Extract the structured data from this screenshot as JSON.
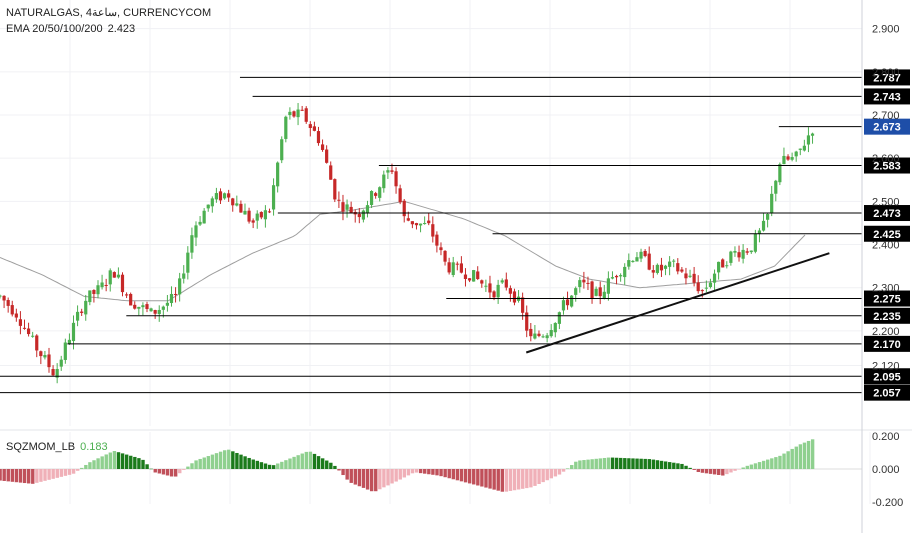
{
  "header": {
    "symbol": "NATURALGAS, 4ساعة, CURRENCYCOM",
    "ema_label": "EMA 20/50/100/200",
    "ema_value": "2.423"
  },
  "indicator": {
    "name": "SQZMOM_LB",
    "value": "0.183"
  },
  "colors": {
    "bull": "#4caf50",
    "bear": "#c62828",
    "ema": "#9e9e9e",
    "level_line": "#000000",
    "label_bg": "#000000",
    "label_text": "#ffffff",
    "current_label_bg": "#1e4ea8",
    "mom_up_strong": "#1b7a1b",
    "mom_up_weak": "#8fd08f",
    "mom_down_strong": "#c0505a",
    "mom_down_weak": "#f0b0b8"
  },
  "chart_data": [
    {
      "type": "candlestick",
      "title": "",
      "ylim": [
        2.04,
        2.92
      ],
      "price_ticks": [
        "2.900",
        "2.800",
        "2.700",
        "2.600",
        "2.500",
        "2.400",
        "2.300",
        "2.200",
        "2.120"
      ],
      "levels": [
        {
          "value": 2.787,
          "label": "2.787",
          "from": 0.285
        },
        {
          "value": 2.743,
          "label": "2.743",
          "from": 0.3
        },
        {
          "value": 2.673,
          "label": "2.673",
          "from": 0.925,
          "current": true
        },
        {
          "value": 2.583,
          "label": "2.583",
          "from": 0.45
        },
        {
          "value": 2.473,
          "label": "2.473",
          "from": 0.33
        },
        {
          "value": 2.425,
          "label": "2.425",
          "from": 0.585
        },
        {
          "value": 2.275,
          "label": "2.275",
          "from": 0.53
        },
        {
          "value": 2.235,
          "label": "2.235",
          "from": 0.15
        },
        {
          "value": 2.17,
          "label": "2.170",
          "from": 0.08
        },
        {
          "value": 2.095,
          "label": "2.095",
          "from": 0.0
        },
        {
          "value": 2.057,
          "label": "2.057",
          "from": 0.0
        }
      ],
      "trendline": {
        "start": [
          0.625,
          2.15
        ],
        "end": [
          0.985,
          2.38
        ]
      },
      "close_anchors": [
        [
          0.0,
          2.28
        ],
        [
          0.02,
          2.24
        ],
        [
          0.04,
          2.17
        ],
        [
          0.065,
          2.1
        ],
        [
          0.085,
          2.2
        ],
        [
          0.1,
          2.27
        ],
        [
          0.12,
          2.3
        ],
        [
          0.135,
          2.34
        ],
        [
          0.155,
          2.27
        ],
        [
          0.18,
          2.24
        ],
        [
          0.21,
          2.28
        ],
        [
          0.23,
          2.44
        ],
        [
          0.25,
          2.5
        ],
        [
          0.27,
          2.52
        ],
        [
          0.3,
          2.45
        ],
        [
          0.32,
          2.48
        ],
        [
          0.34,
          2.7
        ],
        [
          0.36,
          2.7
        ],
        [
          0.38,
          2.64
        ],
        [
          0.4,
          2.5
        ],
        [
          0.425,
          2.47
        ],
        [
          0.445,
          2.52
        ],
        [
          0.465,
          2.58
        ],
        [
          0.48,
          2.46
        ],
        [
          0.51,
          2.44
        ],
        [
          0.53,
          2.35
        ],
        [
          0.56,
          2.33
        ],
        [
          0.585,
          2.29
        ],
        [
          0.6,
          2.31
        ],
        [
          0.615,
          2.27
        ],
        [
          0.63,
          2.18
        ],
        [
          0.65,
          2.2
        ],
        [
          0.67,
          2.26
        ],
        [
          0.69,
          2.31
        ],
        [
          0.71,
          2.28
        ],
        [
          0.73,
          2.33
        ],
        [
          0.755,
          2.38
        ],
        [
          0.78,
          2.34
        ],
        [
          0.8,
          2.35
        ],
        [
          0.82,
          2.32
        ],
        [
          0.835,
          2.29
        ],
        [
          0.85,
          2.34
        ],
        [
          0.87,
          2.38
        ],
        [
          0.89,
          2.39
        ],
        [
          0.91,
          2.45
        ],
        [
          0.925,
          2.59
        ],
        [
          0.945,
          2.6
        ],
        [
          0.965,
          2.67
        ]
      ],
      "ema_anchors": [
        [
          0.0,
          2.37
        ],
        [
          0.05,
          2.33
        ],
        [
          0.1,
          2.28
        ],
        [
          0.15,
          2.27
        ],
        [
          0.2,
          2.27
        ],
        [
          0.25,
          2.33
        ],
        [
          0.3,
          2.38
        ],
        [
          0.35,
          2.42
        ],
        [
          0.38,
          2.47
        ],
        [
          0.42,
          2.48
        ],
        [
          0.48,
          2.5
        ],
        [
          0.55,
          2.46
        ],
        [
          0.6,
          2.42
        ],
        [
          0.66,
          2.35
        ],
        [
          0.7,
          2.32
        ],
        [
          0.76,
          2.3
        ],
        [
          0.82,
          2.31
        ],
        [
          0.88,
          2.32
        ],
        [
          0.92,
          2.35
        ],
        [
          0.96,
          2.43
        ]
      ]
    },
    {
      "type": "histogram",
      "title": "SQZMOM_LB",
      "ylim": [
        -0.2,
        0.2
      ],
      "ticks": [
        "0.200",
        "0.000",
        "-0.200"
      ],
      "anchors": [
        [
          0.0,
          -0.07
        ],
        [
          0.04,
          -0.09
        ],
        [
          0.09,
          -0.03
        ],
        [
          0.11,
          0.04
        ],
        [
          0.14,
          0.11
        ],
        [
          0.175,
          0.06
        ],
        [
          0.19,
          -0.02
        ],
        [
          0.215,
          -0.05
        ],
        [
          0.24,
          0.05
        ],
        [
          0.28,
          0.12
        ],
        [
          0.31,
          0.06
        ],
        [
          0.335,
          0.02
        ],
        [
          0.36,
          0.07
        ],
        [
          0.38,
          0.11
        ],
        [
          0.41,
          0.03
        ],
        [
          0.43,
          -0.08
        ],
        [
          0.46,
          -0.14
        ],
        [
          0.49,
          -0.07
        ],
        [
          0.51,
          -0.02
        ],
        [
          0.54,
          -0.04
        ],
        [
          0.58,
          -0.09
        ],
        [
          0.62,
          -0.14
        ],
        [
          0.655,
          -0.11
        ],
        [
          0.69,
          -0.03
        ],
        [
          0.71,
          0.05
        ],
        [
          0.75,
          0.07
        ],
        [
          0.8,
          0.06
        ],
        [
          0.84,
          0.03
        ],
        [
          0.86,
          -0.02
        ],
        [
          0.89,
          -0.04
        ],
        [
          0.92,
          0.02
        ],
        [
          0.96,
          0.08
        ],
        [
          0.985,
          0.15
        ],
        [
          1.0,
          0.18
        ]
      ]
    }
  ]
}
